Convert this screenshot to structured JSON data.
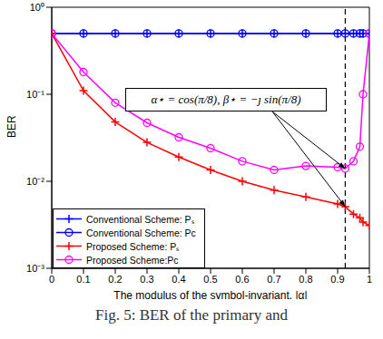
{
  "chart_data": {
    "type": "line",
    "caption": "Fig. 5: BER of the primary and",
    "x_label": "The modulus of the symbol-invariant, |α|",
    "y_label": "BER",
    "x": [
      0,
      0.1,
      0.2,
      0.3,
      0.4,
      0.5,
      0.6,
      0.7,
      0.8,
      0.9,
      0.924,
      0.95,
      0.97,
      0.98,
      1
    ],
    "series": [
      {
        "name": "Conventional Scheme: Pₛ",
        "color": "#0000ff",
        "marker": "plus",
        "values": [
          0.5,
          0.5,
          0.5,
          0.5,
          0.5,
          0.5,
          0.5,
          0.5,
          0.5,
          0.5,
          0.5,
          0.5,
          0.5,
          0.5,
          0.5
        ]
      },
      {
        "name": "Conventional Scheme: Pc",
        "color": "#0000ff",
        "marker": "circle",
        "values": [
          0.5,
          0.5,
          0.5,
          0.5,
          0.5,
          0.5,
          0.5,
          0.5,
          0.5,
          0.5,
          0.5,
          0.5,
          0.5,
          0.5,
          0.5
        ]
      },
      {
        "name": "Proposed Scheme: Pₛ",
        "color": "#ff0000",
        "marker": "plus",
        "values": [
          0.5,
          0.11,
          0.048,
          0.028,
          0.019,
          0.0135,
          0.01,
          0.0079,
          0.0066,
          0.0055,
          0.0051,
          0.0042,
          0.0038,
          0.0034,
          0.0031
        ]
      },
      {
        "name": "Proposed Scheme:Pc",
        "color": "#ff00ff",
        "marker": "circle",
        "values": [
          0.5,
          0.18,
          0.08,
          0.047,
          0.032,
          0.024,
          0.017,
          0.0135,
          0.015,
          0.0145,
          0.014,
          0.017,
          0.025,
          0.1,
          0.5
        ]
      }
    ],
    "xlim": [
      0,
      1
    ],
    "xticks": [
      0,
      0.1,
      0.2,
      0.3,
      0.4,
      0.5,
      0.6,
      0.7,
      0.8,
      0.9,
      1
    ],
    "ylim": [
      0.001,
      1
    ],
    "yticks": [
      {
        "value": 0.001,
        "label": "10⁻³"
      },
      {
        "value": 0.01,
        "label": "10⁻²"
      },
      {
        "value": 0.1,
        "label": "10⁻¹"
      },
      {
        "value": 1,
        "label": "10⁰"
      }
    ],
    "log": "y",
    "grid": false,
    "legend": "lower left",
    "annotations": [
      {
        "text": "α⋆ = cos(π/8), β⋆ = −ȷ sin(π/8)",
        "x": 0.924,
        "line_style": "dashed",
        "targets": [
          "Proposed Scheme: Pₛ",
          "Proposed Scheme:Pc"
        ]
      }
    ]
  }
}
